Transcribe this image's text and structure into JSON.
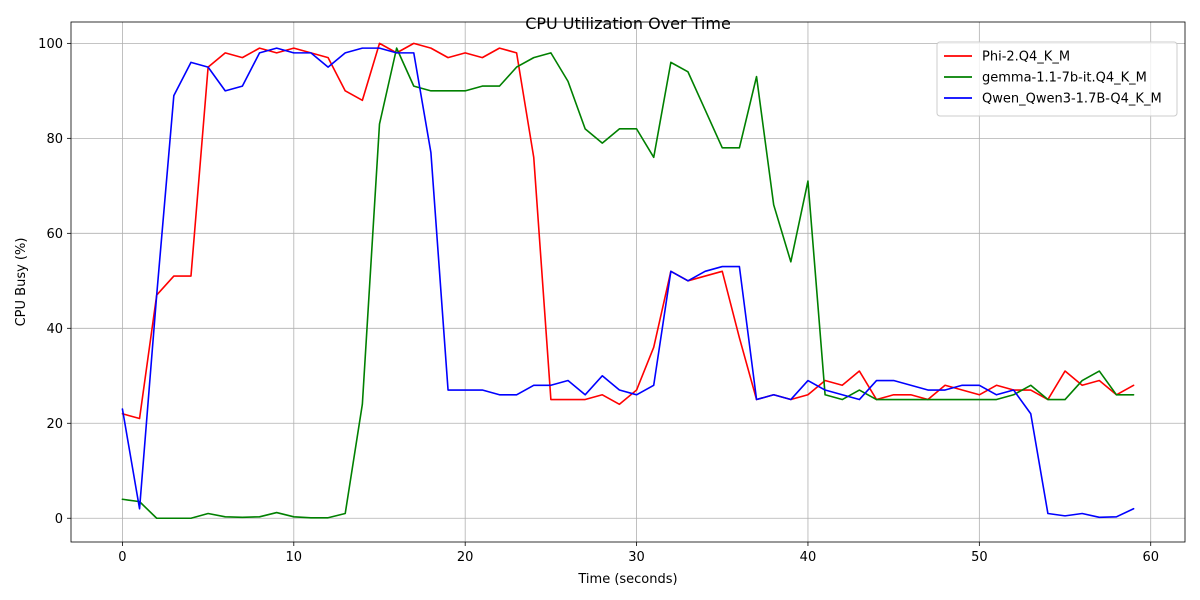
{
  "chart_data": {
    "type": "line",
    "title": "CPU Utilization Over Time",
    "xlabel": "Time (seconds)",
    "ylabel": "CPU Busy (%)",
    "xlim": [
      -3,
      62
    ],
    "ylim": [
      -5,
      104.5
    ],
    "xticks": [
      0,
      10,
      20,
      30,
      40,
      50,
      60
    ],
    "yticks": [
      0,
      20,
      40,
      60,
      80,
      100
    ],
    "grid": true,
    "legend_position": "top-right",
    "x": [
      0,
      1,
      2,
      3,
      4,
      5,
      6,
      7,
      8,
      9,
      10,
      11,
      12,
      13,
      14,
      15,
      16,
      17,
      18,
      19,
      20,
      21,
      22,
      23,
      24,
      25,
      26,
      27,
      28,
      29,
      30,
      31,
      32,
      33,
      34,
      35,
      36,
      37,
      38,
      39,
      40,
      41,
      42,
      43,
      44,
      45,
      46,
      47,
      48,
      49,
      50,
      51,
      52,
      53,
      54,
      55,
      56,
      57,
      58,
      59
    ],
    "series": [
      {
        "name": "Phi-2.Q4_K_M",
        "color": "#ff0000",
        "values": [
          22,
          21,
          47,
          51,
          51,
          95,
          98,
          97,
          99,
          98,
          99,
          98,
          97,
          90,
          88,
          100,
          98,
          100,
          99,
          97,
          98,
          97,
          99,
          98,
          76,
          25,
          25,
          25,
          26,
          24,
          27,
          36,
          52,
          50,
          51,
          52,
          38,
          25,
          26,
          25,
          26,
          29,
          28,
          31,
          25,
          26,
          26,
          25,
          28,
          27,
          26,
          28,
          27,
          27,
          25,
          31,
          28,
          29,
          26,
          28
        ]
      },
      {
        "name": "gemma-1.1-7b-it.Q4_K_M",
        "color": "#008000",
        "values": [
          4,
          3.5,
          0,
          0,
          0,
          1,
          0.3,
          0.2,
          0.3,
          1.2,
          0.3,
          0.1,
          0.1,
          1,
          24,
          83,
          99,
          91,
          90,
          90,
          90,
          91,
          91,
          95,
          97,
          98,
          92,
          82,
          79,
          82,
          82,
          76,
          96,
          94,
          86,
          78,
          78,
          93,
          66,
          54,
          71,
          26,
          25,
          27,
          25,
          25,
          25,
          25,
          25,
          25,
          25,
          25,
          26,
          28,
          25,
          25,
          29,
          31,
          26,
          26
        ]
      },
      {
        "name": "Qwen_Qwen3-1.7B-Q4_K_M",
        "color": "#0000ff",
        "values": [
          23,
          2,
          47,
          89,
          96,
          95,
          90,
          91,
          98,
          99,
          98,
          98,
          95,
          98,
          99,
          99,
          98,
          98,
          77,
          27,
          27,
          27,
          26,
          26,
          28,
          28,
          29,
          26,
          30,
          27,
          26,
          28,
          52,
          50,
          52,
          53,
          53,
          25,
          26,
          25,
          29,
          27,
          26,
          25,
          29,
          29,
          28,
          27,
          27,
          28,
          28,
          26,
          27,
          22,
          1,
          0.5,
          1,
          0.2,
          0.3,
          2
        ]
      }
    ]
  }
}
